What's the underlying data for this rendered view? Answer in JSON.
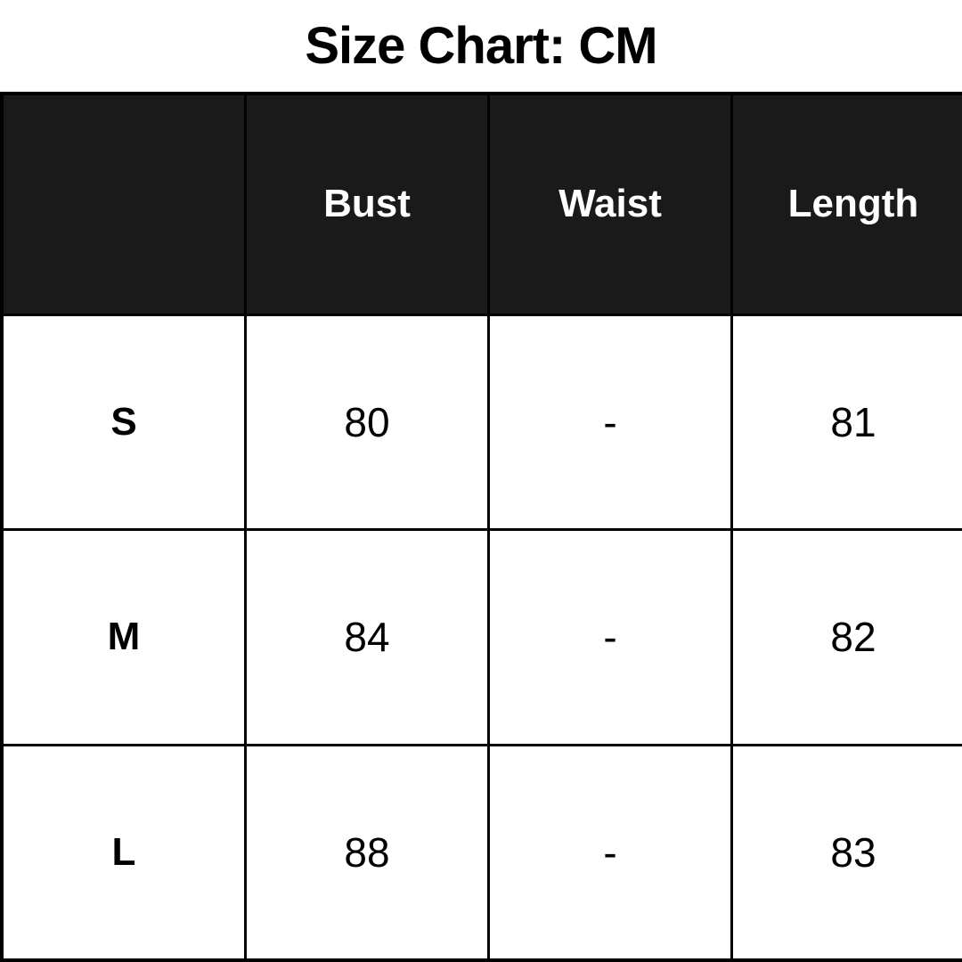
{
  "title": "Size Chart: CM",
  "chart_data": {
    "type": "table",
    "title": "Size Chart: CM",
    "unit": "CM",
    "columns": [
      "",
      "Bust",
      "Waist",
      "Length"
    ],
    "rows": [
      [
        "S",
        "80",
        "-",
        "81"
      ],
      [
        "M",
        "84",
        "-",
        "82"
      ],
      [
        "L",
        "88",
        "-",
        "83"
      ]
    ]
  },
  "colors": {
    "header_bg": "#1a1a1a",
    "header_text": "#ffffff",
    "border": "#000000",
    "background": "#ffffff",
    "title_text": "#000000"
  }
}
